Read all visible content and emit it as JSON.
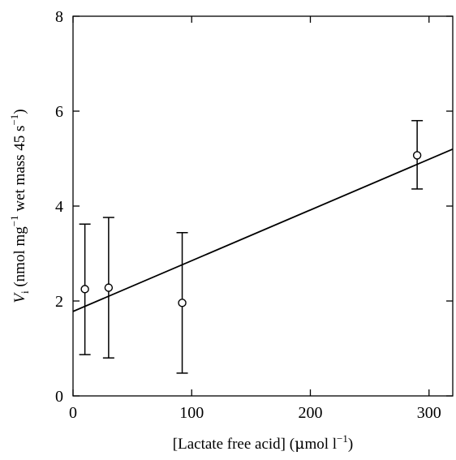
{
  "chart_data": {
    "type": "scatter",
    "title": "",
    "xlabel": {
      "prefix": "[Lactate free acid] (",
      "mu": "μ",
      "unit": "mol l",
      "sup": "−1",
      "suffix": ")"
    },
    "ylabel": {
      "var": "V",
      "sub": "i",
      "open": " (nmol mg",
      "sup1": "−1",
      "mid": " wet mass 45 s",
      "sup2": "−1",
      "close": ")"
    },
    "xlim": [
      0,
      320
    ],
    "ylim": [
      0,
      8
    ],
    "xticks": [
      0,
      100,
      200,
      300
    ],
    "yticks": [
      0,
      2,
      4,
      6,
      8
    ],
    "xtick_labels": [
      "0",
      "100",
      "200",
      "300"
    ],
    "ytick_labels": [
      "0",
      "2",
      "4",
      "6",
      "8"
    ],
    "grid": false,
    "series": [
      {
        "type": "scatter-errorbar",
        "marker": "open-circle",
        "points": [
          {
            "x": 10,
            "y": 2.25,
            "err_low": 0.87,
            "err_high": 3.62
          },
          {
            "x": 30,
            "y": 2.28,
            "err_low": 0.8,
            "err_high": 3.76
          },
          {
            "x": 92,
            "y": 1.96,
            "err_low": 0.48,
            "err_high": 3.44
          },
          {
            "x": 290,
            "y": 5.07,
            "err_low": 4.36,
            "err_high": 5.8
          }
        ]
      },
      {
        "type": "line",
        "fit": "linear",
        "x": [
          0,
          320
        ],
        "y": [
          1.78,
          5.2
        ]
      }
    ],
    "colors": {
      "ink": "#000000",
      "background": "#ffffff"
    }
  }
}
